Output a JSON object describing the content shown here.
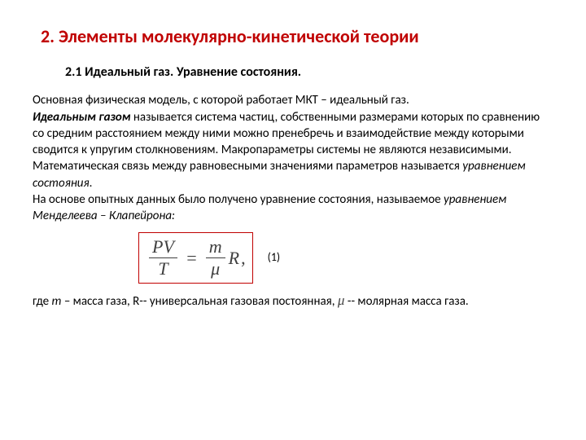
{
  "title": "2. Элементы молекулярно-кинетической теории",
  "subtitle": "2.1 Идеальный газ. Уравнение состояния.",
  "p1_a": "Основная физическая модель, с которой работает  МКТ – идеальный газ.",
  "p1_b1": "Идеальным газом",
  "p1_b2": " называется система частиц, собственными размерами которых по сравнению со средним расстоянием между ними можно пренебречь и взаимодействие между которыми сводится к упругим столкновениям. Макропараметры системы не являются независимыми. Математическая связь между равновесными значениями параметров называется ",
  "p1_b3": "уравнением состояния",
  "p1_b4": ".",
  "p2_a": "На основе опытных данных  было получено уравнение состояния, называемое ",
  "p2_b": "уравнением Менделеева – Клапейрона:",
  "formula": {
    "left_num": "PV",
    "left_den": "T",
    "right_num": "m",
    "right_den": "μ",
    "tail": "R",
    "comma": ",",
    "eqnum": "(1)",
    "border_color": "#c00000",
    "text_color": "#404040"
  },
  "footer_a": "где ",
  "footer_m": "m",
  "footer_b": " – масса газа,   R-- универсальная газовая постоянная,   ",
  "footer_mu": "μ",
  "footer_c": "  -- молярная масса газа."
}
